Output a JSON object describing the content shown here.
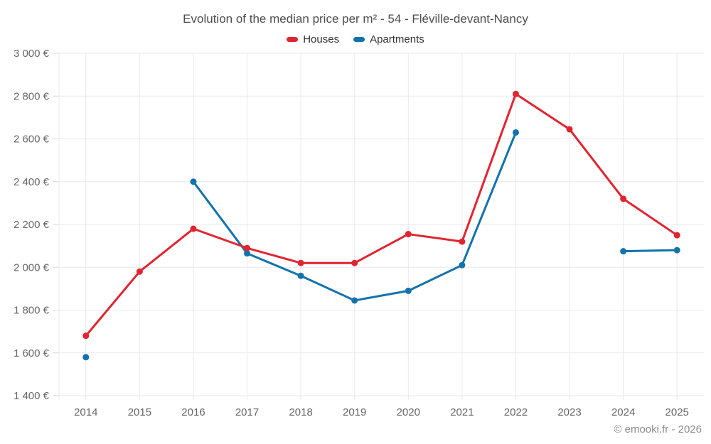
{
  "title": "Evolution of the median price per m² - 54 - Fléville-devant-Nancy",
  "watermark": "© emooki.fr - 2026",
  "colors": {
    "houses": "#e02531",
    "apartments": "#1272ad",
    "grid": "#e9e9e9",
    "axis_text": "#666666",
    "title_text": "#4d4d4d"
  },
  "legend": [
    {
      "label": "Houses",
      "color": "#e02531"
    },
    {
      "label": "Apartments",
      "color": "#1272ad"
    }
  ],
  "chart_data": {
    "type": "line",
    "title": "Evolution of the median price per m² - 54 - Fléville-devant-Nancy",
    "xlabel": "",
    "ylabel": "",
    "categories": [
      2014,
      2015,
      2016,
      2017,
      2018,
      2019,
      2020,
      2021,
      2022,
      2023,
      2024,
      2025
    ],
    "series": [
      {
        "name": "Houses",
        "color": "#e02531",
        "values": [
          1680,
          1980,
          2180,
          2090,
          2020,
          2020,
          2155,
          2120,
          2810,
          2645,
          2320,
          2150
        ]
      },
      {
        "name": "Apartments",
        "color": "#1272ad",
        "values": [
          1580,
          null,
          2400,
          2065,
          1960,
          1845,
          1890,
          2010,
          2630,
          null,
          2075,
          2080
        ]
      }
    ],
    "ylim": [
      1400,
      3000
    ],
    "ytick_step": 200,
    "ytick_labels": [
      "1 400 €",
      "1 600 €",
      "1 800 €",
      "2 000 €",
      "2 200 €",
      "2 400 €",
      "2 600 €",
      "2 800 €",
      "3 000 €"
    ],
    "grid": true,
    "legend_position": "top center",
    "marker": "circle"
  }
}
